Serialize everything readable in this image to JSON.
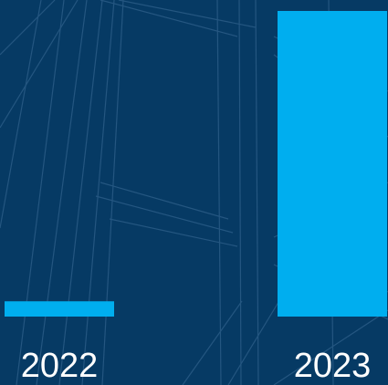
{
  "chart_data": {
    "type": "bar",
    "categories": [
      "2022",
      "2023"
    ],
    "values": [
      5,
      100
    ],
    "ylim": [
      0,
      100
    ],
    "grid": false,
    "legend": "none",
    "colors": {
      "bar": "#00aeef",
      "background": "#063a64",
      "background_lines": "#2a5b86",
      "text": "#ffffff"
    }
  }
}
